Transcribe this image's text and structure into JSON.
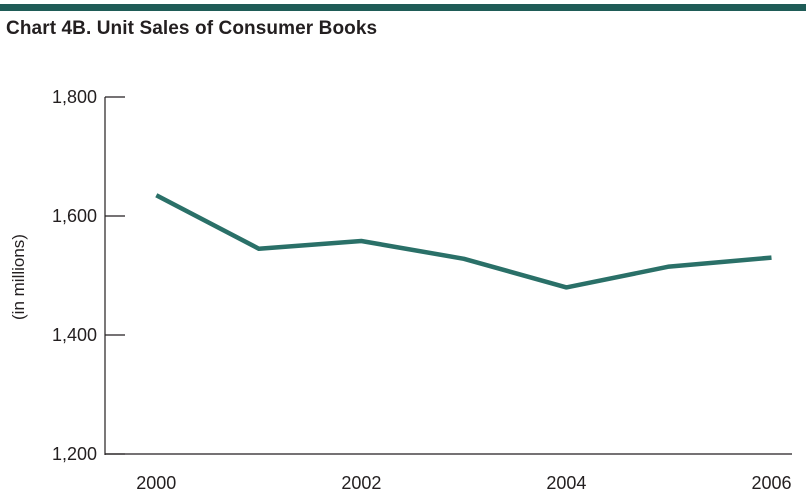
{
  "chart_data": {
    "type": "line",
    "title": "Chart 4B. Unit Sales of Consumer Books",
    "xlabel": "",
    "ylabel": "(in millions)",
    "x": [
      2000,
      2001,
      2002,
      2003,
      2004,
      2005,
      2006
    ],
    "series": [
      {
        "values": [
          1635,
          1545,
          1558,
          1528,
          1480,
          1515,
          1530
        ]
      }
    ],
    "x_tick_labels": [
      "2000",
      "2002",
      "2004",
      "2006"
    ],
    "x_ticks": [
      2000,
      2002,
      2004,
      2006
    ],
    "y_tick_labels": [
      "1,800",
      "1,600",
      "1,400",
      "1,200"
    ],
    "y_ticks": [
      1800,
      1600,
      1400,
      1200
    ],
    "ylim": [
      1200,
      1800
    ],
    "xlim": [
      1999.5,
      2006.2
    ],
    "grid": false,
    "colors": {
      "line": "#2a7068",
      "title_rule": "#1f5c57",
      "axis": "#231f20"
    }
  }
}
